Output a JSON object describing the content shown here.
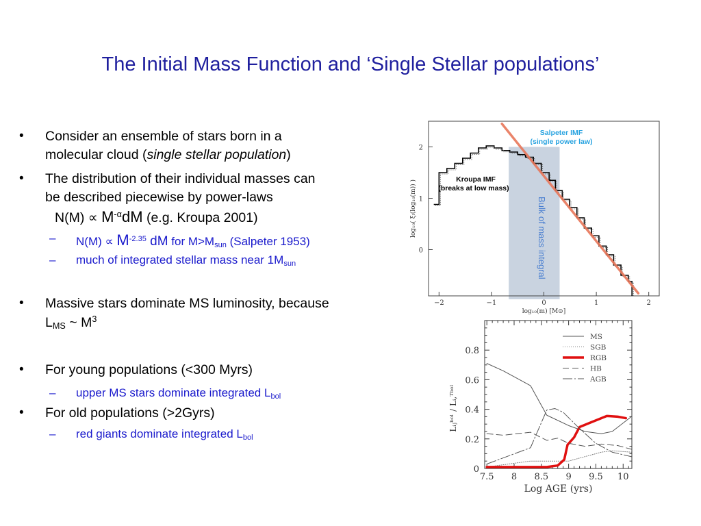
{
  "title": "The Initial Mass Function and ‘Single Stellar populations’",
  "bullets": {
    "b1_l1": "Consider an ensemble of stars born in a",
    "b1_l2a": "molecular cloud (",
    "b1_l2i": "single stellar population",
    "b1_l2b": ")",
    "b2_l1": "The distribution of their individual masses can",
    "b2_l2": "be described piecewise by power-laws",
    "eq_a": "N(M) ∝ ",
    "eq_m": "M",
    "eq_sup": "-α",
    "eq_dm": "dM",
    "eq_ref": " (e.g. Kroupa 2001)",
    "s1_a": "N(M) ∝ ",
    "s1_m": "M",
    "s1_sup": "-2.35",
    "s1_dm": " dM",
    "s1_b": "  for M>M",
    "s1_sub": "sun",
    "s1_c": " (Salpeter 1953)",
    "s2_a": "much of  integrated stellar mass near 1M",
    "s2_sub": "sun",
    "b3_l1": "Massive stars dominate MS luminosity, because",
    "b3_l2a": "L",
    "b3_sub": "MS",
    "b3_l2b": " ~ M",
    "b3_sup": "3",
    "b4": "For young populations (<300 Myrs)",
    "s3_a": "upper MS stars dominate integrated L",
    "s3_sub": "bol",
    "b5": "For old populations (>2Gyrs)",
    "s4_a": "red giants dominate integrated L",
    "s4_sub": "bol",
    "bullet_char": "•",
    "dash_char": "–"
  },
  "chart_data": [
    {
      "type": "line",
      "xlabel": "log₁₀(m)   [M⊙]",
      "ylabel": "log₁₀( ξₗ(log₁₀(m)) )",
      "xlim": [
        -2.2,
        2.2
      ],
      "ylim": [
        -0.9,
        2.5
      ],
      "xticks": [
        -2,
        -1,
        0,
        1,
        2
      ],
      "yticks": [
        0,
        1,
        2
      ],
      "grid": false,
      "annotations": {
        "salpeter_title": "Salpeter IMF",
        "salpeter_sub": "(single power law)",
        "kroupa_title": "Kroupa IMF",
        "kroupa_sub": "(breaks at low mass)",
        "band_label": "Bulk of mass integral"
      },
      "band": {
        "x": [
          -0.67,
          0.3
        ],
        "y_top": 2.0,
        "color": "#c9d3e0"
      },
      "series": [
        {
          "kind": "step",
          "color": "#000000",
          "edges": [
            -2.1,
            -2.0,
            -1.85,
            -1.7,
            -1.55,
            -1.4,
            -1.25,
            -1.1,
            -0.95,
            -0.8,
            -0.65,
            -0.5,
            -0.35,
            -0.2,
            -0.05,
            0.1,
            0.22,
            0.35,
            0.49,
            0.63,
            0.77,
            0.91,
            1.05,
            1.19,
            1.33,
            1.47,
            1.61,
            1.68
          ],
          "values": [
            0.88,
            1.5,
            1.58,
            1.68,
            1.78,
            1.88,
            1.98,
            2.02,
            1.98,
            1.93,
            1.9,
            1.85,
            1.8,
            1.68,
            1.5,
            1.35,
            1.15,
            0.98,
            0.82,
            0.62,
            0.42,
            0.27,
            0.07,
            -0.1,
            -0.3,
            -0.5,
            -0.62
          ]
        },
        {
          "kind": "line",
          "color": "#e8775a",
          "x": [
            -0.8,
            1.8
          ],
          "y": [
            2.45,
            -0.85
          ]
        }
      ]
    },
    {
      "type": "line",
      "xlabel": "Log AGE (yrs)",
      "ylabel": "Lᵢⱼᵇᵒˡ / Lᵢ,ᵀᵇᵒˡ",
      "xlim": [
        7.46,
        10.16
      ],
      "ylim": [
        0,
        1.0
      ],
      "xticks": [
        7.5,
        8,
        8.5,
        9,
        9.5,
        10
      ],
      "xticklabels": [
        "7.5",
        "8",
        "8.5",
        "9",
        "9.5",
        "10"
      ],
      "yticks": [
        0,
        0.2,
        0.4,
        0.6,
        0.8
      ],
      "yticklabels": [
        "0",
        "0.2",
        "0.4",
        "0.6",
        "0.8"
      ],
      "grid": false,
      "legend": "top-right",
      "series": [
        {
          "name": "MS",
          "style": "solid",
          "color": "#555555",
          "x": [
            7.5,
            7.8,
            8.3,
            8.6,
            9.0,
            9.3,
            9.6,
            9.8,
            10.15
          ],
          "y": [
            0.71,
            0.66,
            0.56,
            0.36,
            0.29,
            0.25,
            0.235,
            0.25,
            0.35
          ]
        },
        {
          "name": "SGB",
          "style": "dotted",
          "color": "#777777",
          "x": [
            7.5,
            8.3,
            9.0,
            9.6,
            9.8,
            10.15
          ],
          "y": [
            0.01,
            0.05,
            0.05,
            0.11,
            0.12,
            0.11
          ]
        },
        {
          "name": "RGB",
          "style": "thick",
          "color": "#e01010",
          "x": [
            7.5,
            8.3,
            8.6,
            8.8,
            8.92,
            8.98,
            9.1,
            9.2,
            9.4,
            9.7,
            9.9,
            10.05
          ],
          "y": [
            0.01,
            0.01,
            0.01,
            0.02,
            0.06,
            0.16,
            0.21,
            0.28,
            0.31,
            0.355,
            0.35,
            0.34
          ]
        },
        {
          "name": "HB",
          "style": "dashed",
          "color": "#555555",
          "x": [
            7.5,
            7.8,
            8.3,
            8.6,
            8.8,
            9.0,
            9.3,
            9.6,
            9.9,
            10.15
          ],
          "y": [
            0.235,
            0.225,
            0.245,
            0.19,
            0.205,
            0.17,
            0.15,
            0.165,
            0.155,
            0.13
          ]
        },
        {
          "name": "AGB",
          "style": "longdash",
          "color": "#555555",
          "x": [
            7.5,
            8.3,
            8.6,
            8.75,
            8.9,
            9.2,
            9.5,
            9.8,
            10.15
          ],
          "y": [
            0.03,
            0.14,
            0.395,
            0.405,
            0.38,
            0.27,
            0.17,
            0.11,
            0.08
          ]
        }
      ]
    }
  ]
}
